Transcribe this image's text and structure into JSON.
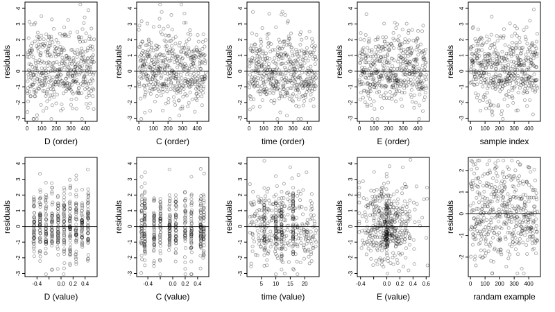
{
  "chart_data": [
    {
      "type": "scatter",
      "xlabel": "D (order)",
      "ylabel": "residuals",
      "xlim": [
        -15,
        480
      ],
      "ylim": [
        -3.2,
        4.4
      ],
      "xticks": [
        0,
        100,
        200,
        300,
        400
      ],
      "xtick_labels": [
        "0",
        "100",
        "200",
        "300",
        "400"
      ],
      "yticks": [
        -3,
        -2,
        -1,
        0,
        1,
        2,
        3,
        4
      ],
      "ytick_labels": [
        "-3",
        "-2",
        "-1",
        "0",
        "1",
        "2",
        "3",
        "4"
      ],
      "hline": 0,
      "gen": {
        "seed": 11,
        "mode": "order",
        "n": 460
      }
    },
    {
      "type": "scatter",
      "xlabel": "C (order)",
      "ylabel": "residuals",
      "xlim": [
        -15,
        480
      ],
      "ylim": [
        -3.2,
        4.4
      ],
      "xticks": [
        0,
        100,
        200,
        300,
        400
      ],
      "xtick_labels": [
        "0",
        "100",
        "200",
        "300",
        "400"
      ],
      "yticks": [
        -3,
        -2,
        -1,
        0,
        1,
        2,
        3,
        4
      ],
      "ytick_labels": [
        "-3",
        "-2",
        "-1",
        "0",
        "1",
        "2",
        "3",
        "4"
      ],
      "hline": 0,
      "gen": {
        "seed": 23,
        "mode": "order",
        "n": 460
      }
    },
    {
      "type": "scatter",
      "xlabel": "time (order)",
      "ylabel": "residuals",
      "xlim": [
        -15,
        480
      ],
      "ylim": [
        -3.2,
        4.4
      ],
      "xticks": [
        0,
        100,
        200,
        300,
        400
      ],
      "xtick_labels": [
        "0",
        "100",
        "200",
        "300",
        "400"
      ],
      "yticks": [
        -3,
        -2,
        -1,
        0,
        1,
        2,
        3,
        4
      ],
      "ytick_labels": [
        "-3",
        "-2",
        "-1",
        "0",
        "1",
        "2",
        "3",
        "4"
      ],
      "hline": 0,
      "gen": {
        "seed": 37,
        "mode": "order",
        "n": 460
      }
    },
    {
      "type": "scatter",
      "xlabel": "E (order)",
      "ylabel": "residuals",
      "xlim": [
        -15,
        480
      ],
      "ylim": [
        -3.2,
        4.4
      ],
      "xticks": [
        0,
        100,
        200,
        300,
        400
      ],
      "xtick_labels": [
        "0",
        "100",
        "200",
        "300",
        "400"
      ],
      "yticks": [
        -3,
        -2,
        -1,
        0,
        1,
        2,
        3,
        4
      ],
      "ytick_labels": [
        "-3",
        "-2",
        "-1",
        "0",
        "1",
        "2",
        "3",
        "4"
      ],
      "hline": 0,
      "gen": {
        "seed": 41,
        "mode": "order",
        "n": 460
      }
    },
    {
      "type": "scatter",
      "xlabel": "sample index",
      "ylabel": "residuals",
      "xlim": [
        -15,
        480
      ],
      "ylim": [
        -3.2,
        4.4
      ],
      "xticks": [
        0,
        100,
        200,
        300,
        400
      ],
      "xtick_labels": [
        "0",
        "100",
        "200",
        "300",
        "400"
      ],
      "yticks": [
        -3,
        -2,
        -1,
        0,
        1,
        2,
        3,
        4
      ],
      "ytick_labels": [
        "-3",
        "-2",
        "-1",
        "0",
        "1",
        "2",
        "3",
        "4"
      ],
      "hline": 0,
      "gen": {
        "seed": 53,
        "mode": "order",
        "n": 460
      }
    },
    {
      "type": "scatter",
      "xlabel": "D (value)",
      "ylabel": "residuals",
      "xlim": [
        -0.6,
        0.6
      ],
      "ylim": [
        -3.2,
        4.4
      ],
      "xticks": [
        -0.4,
        -0.2,
        0,
        0.2,
        0.4
      ],
      "xtick_labels": [
        "-0.4",
        "",
        "0.0",
        "0.2",
        "0.4"
      ],
      "yticks": [
        -3,
        -2,
        -1,
        0,
        1,
        2,
        3,
        4
      ],
      "ytick_labels": [
        "-3",
        "-2",
        "-1",
        "0",
        "1",
        "2",
        "3",
        "4"
      ],
      "hline": 0,
      "gen": {
        "seed": 61,
        "mode": "discrete",
        "n": 460,
        "levels": [
          -0.45,
          -0.35,
          -0.25,
          -0.15,
          -0.05,
          0.05,
          0.15,
          0.25,
          0.35,
          0.45
        ]
      }
    },
    {
      "type": "scatter",
      "xlabel": "C (value)",
      "ylabel": "residuals",
      "xlim": [
        -0.58,
        0.58
      ],
      "ylim": [
        -3.2,
        4.4
      ],
      "xticks": [
        -0.4,
        -0.2,
        0,
        0.2,
        0.4
      ],
      "xtick_labels": [
        "-0.4",
        "",
        "0.0",
        "0.2",
        "0.4"
      ],
      "yticks": [
        -3,
        -2,
        -1,
        0,
        1,
        2,
        3,
        4
      ],
      "ytick_labels": [
        "-3",
        "-2",
        "-1",
        "0",
        "1",
        "2",
        "3",
        "4"
      ],
      "hline": 0,
      "gen": {
        "seed": 73,
        "mode": "discrete",
        "n": 460,
        "levels": [
          -0.5,
          -0.45,
          -0.3,
          -0.2,
          -0.05,
          0.05,
          0.2,
          0.3,
          0.45,
          0.5
        ]
      }
    },
    {
      "type": "scatter",
      "xlabel": "time (value)",
      "ylabel": "residuals",
      "xlim": [
        0,
        25
      ],
      "ylim": [
        -3.2,
        4.4
      ],
      "xticks": [
        5,
        10,
        15,
        20
      ],
      "xtick_labels": [
        "5",
        "10",
        "15",
        "20"
      ],
      "yticks": [
        -3,
        -2,
        -1,
        0,
        1,
        2,
        3,
        4
      ],
      "ytick_labels": [
        "-3",
        "-2",
        "-1",
        "0",
        "1",
        "2",
        "3",
        "4"
      ],
      "hline": 0,
      "gen": {
        "seed": 83,
        "mode": "uniformx",
        "n": 460,
        "xmin": 1,
        "xmax": 24,
        "stripes": [
          6,
          10,
          12,
          16
        ]
      }
    },
    {
      "type": "scatter",
      "xlabel": "E (value)",
      "ylabel": "residuals",
      "xlim": [
        -0.45,
        0.65
      ],
      "ylim": [
        -3.2,
        4.4
      ],
      "xticks": [
        -0.4,
        -0.2,
        0,
        0.2,
        0.4,
        0.6
      ],
      "xtick_labels": [
        "-0.4",
        "",
        "0.0",
        "0.2",
        "0.4",
        "0.6"
      ],
      "yticks": [
        -3,
        -2,
        -1,
        0,
        1,
        2,
        3,
        4
      ],
      "ytick_labels": [
        "-3",
        "-2",
        "-1",
        "0",
        "1",
        "2",
        "3",
        "4"
      ],
      "hline": 0,
      "gen": {
        "seed": 97,
        "mode": "centered",
        "n": 460,
        "center": 0,
        "spread": 0.22,
        "xmin": -0.42,
        "xmax": 0.62
      }
    },
    {
      "type": "scatter",
      "xlabel": "randam example",
      "ylabel": "residuals",
      "xlim": [
        -15,
        480
      ],
      "ylim": [
        -2.9,
        2.6
      ],
      "xticks": [
        0,
        100,
        200,
        300,
        400
      ],
      "xtick_labels": [
        "0",
        "100",
        "200",
        "300",
        "400"
      ],
      "yticks": [
        -2,
        -1,
        0,
        1,
        2
      ],
      "ytick_labels": [
        "-2",
        "-1",
        "0",
        "1",
        "2"
      ],
      "hline": 0,
      "gen": {
        "seed": 101,
        "mode": "order",
        "n": 460
      }
    }
  ]
}
